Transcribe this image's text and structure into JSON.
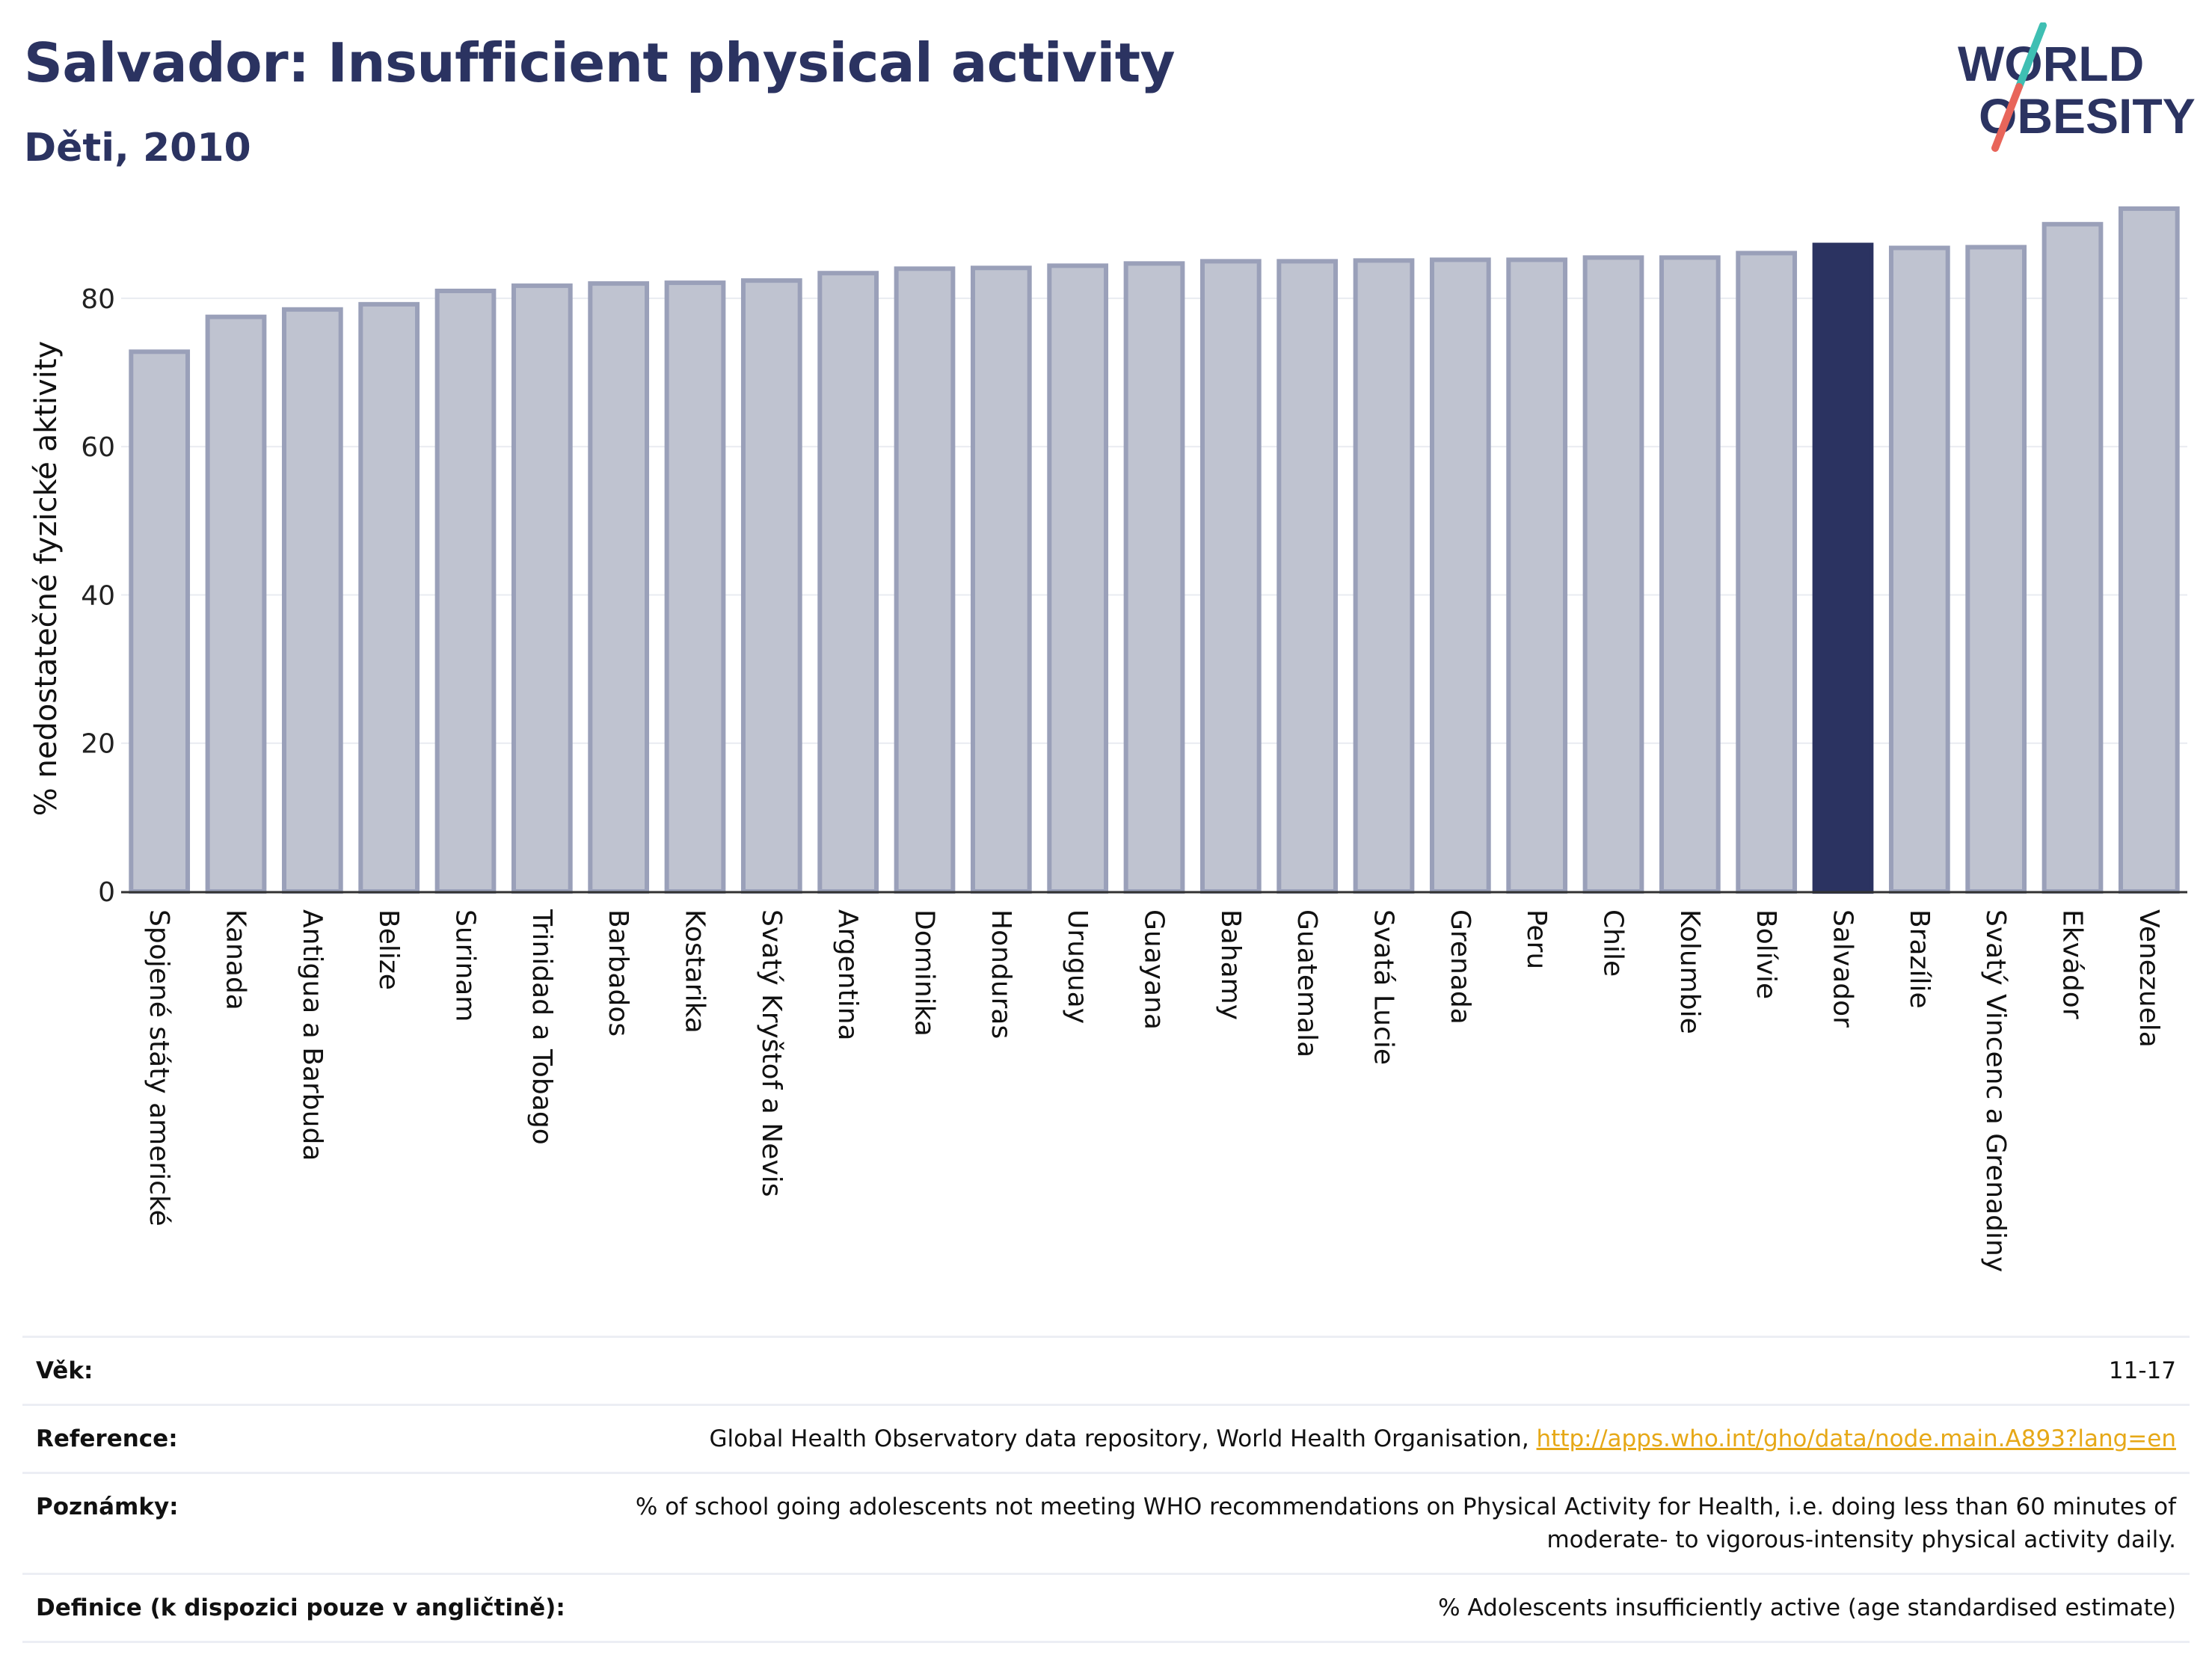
{
  "header": {
    "title": "Salvador: Insufficient physical activity",
    "subtitle": "Děti, 2010"
  },
  "logo": {
    "line1": "WORLD",
    "line2": "OBESITY",
    "icon": "world-obesity-slash-logo"
  },
  "colors": {
    "title": "#2b3361",
    "bar": "#bfc3d0",
    "bar_stroke": "#9aa0b9",
    "highlight": "#2b3361",
    "link": "#e6a817"
  },
  "chart_data": {
    "type": "bar",
    "title": "Salvador: Insufficient physical activity",
    "subtitle": "Děti, 2010",
    "xlabel": "",
    "ylabel": "% nedostatečné fyzické aktivity",
    "ylim": [
      0,
      92.5
    ],
    "yticks": [
      0,
      20,
      40,
      60,
      80
    ],
    "grid": true,
    "highlight": "Salvador",
    "categories": [
      "Spojené státy americké",
      "Kanada",
      "Antigua a Barbuda",
      "Belize",
      "Surinam",
      "Trinidad a Tobago",
      "Barbados",
      "Kostarika",
      "Svatý Kryštof a Nevis",
      "Argentina",
      "Dominika",
      "Honduras",
      "Uruguay",
      "Guayana",
      "Bahamy",
      "Guatemala",
      "Svatá Lucie",
      "Grenada",
      "Peru",
      "Chile",
      "Kolumbie",
      "Bolívie",
      "Salvador",
      "Brazílie",
      "Svatý Vincenc a Grenadiny",
      "Ekvádor",
      "Venezuela"
    ],
    "values": [
      72.8,
      77.5,
      78.5,
      79.2,
      81.0,
      81.7,
      82.0,
      82.1,
      82.4,
      83.4,
      84.0,
      84.1,
      84.4,
      84.7,
      85.0,
      85.0,
      85.1,
      85.2,
      85.2,
      85.5,
      85.5,
      86.1,
      87.2,
      86.8,
      86.9,
      90.0,
      92.1
    ]
  },
  "footer": {
    "rows": [
      {
        "label": "Věk:",
        "value": "11-17"
      },
      {
        "label": "Reference:",
        "value": "Global Health Observatory data repository, World Health Organisation,",
        "link": "http://apps.who.int/gho/data/node.main.A893?lang=en"
      },
      {
        "label": "Poznámky:",
        "value": "% of school going adolescents not meeting WHO recommendations on Physical Activity for Health, i.e. doing less than 60 minutes of moderate- to vigorous-intensity physical activity daily."
      },
      {
        "label": "Definice (k dispozici pouze v angličtině):",
        "value": "% Adolescents insufficiently active (age standardised estimate)"
      }
    ]
  }
}
